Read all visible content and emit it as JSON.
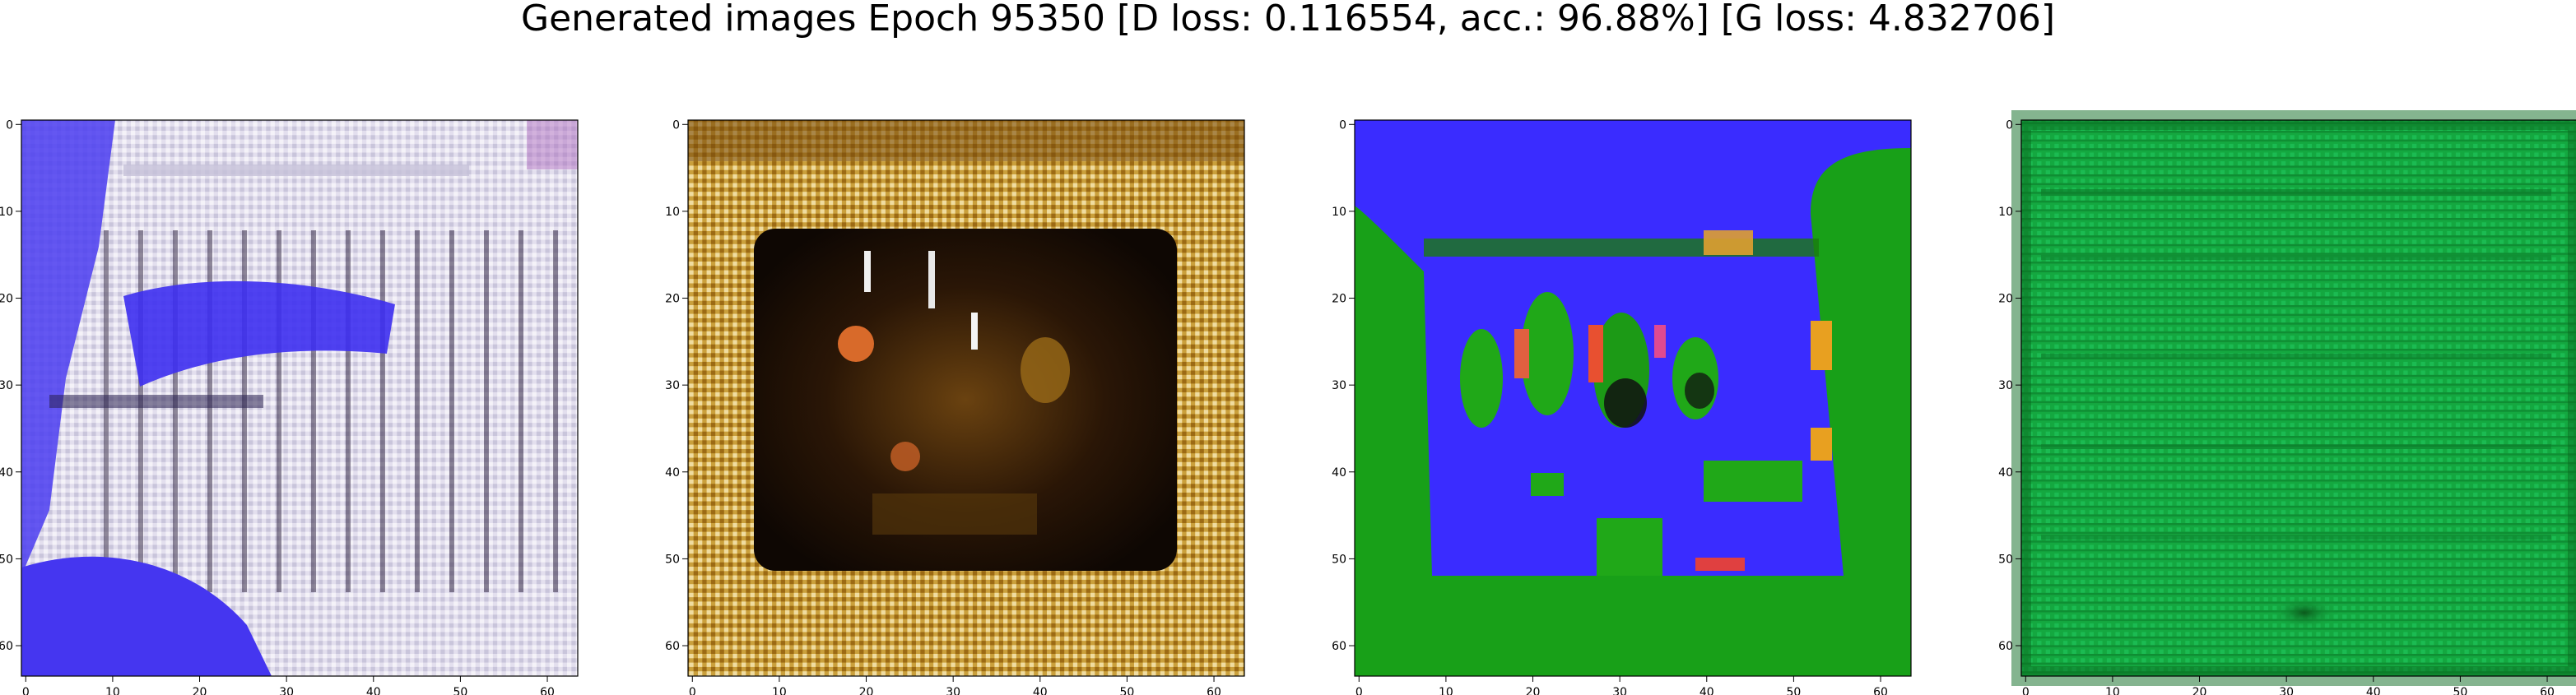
{
  "figure": {
    "title": "Generated images Epoch 95350 [D loss: 0.116554, acc.: 96.88%] [G loss: 4.832706]",
    "epoch": 95350,
    "d_loss": 0.116554,
    "acc_percent": 96.88,
    "g_loss": 4.832706
  },
  "panels": [
    {
      "id": "sample-1",
      "description_colors": [
        "#e6e2ef",
        "#4a3cf0",
        "#2a2a3a",
        "#b7b4cf"
      ],
      "x_ticks": [
        "0",
        "10",
        "20",
        "30",
        "40",
        "50",
        "60"
      ],
      "y_ticks": [
        "0",
        "10",
        "20",
        "30",
        "40",
        "50",
        "60"
      ],
      "xlim": [
        0,
        63
      ],
      "ylim": [
        63,
        0
      ]
    },
    {
      "id": "sample-2",
      "description_colors": [
        "#c8941c",
        "#1a0d05",
        "#7a5010",
        "#d86a2a"
      ],
      "x_ticks": [
        "0",
        "10",
        "20",
        "30",
        "40",
        "50",
        "60"
      ],
      "y_ticks": [
        "0",
        "10",
        "20",
        "30",
        "40",
        "50",
        "60"
      ],
      "xlim": [
        0,
        63
      ],
      "ylim": [
        63,
        0
      ]
    },
    {
      "id": "sample-3",
      "description_colors": [
        "#3a2cff",
        "#18a018",
        "#e06040",
        "#101010"
      ],
      "x_ticks": [
        "0",
        "10",
        "20",
        "30",
        "40",
        "50",
        "60"
      ],
      "y_ticks": [
        "0",
        "10",
        "20",
        "30",
        "40",
        "50",
        "60"
      ],
      "xlim": [
        0,
        63
      ],
      "ylim": [
        63,
        0
      ]
    },
    {
      "id": "sample-4",
      "description_colors": [
        "#13a83e",
        "#0b6e22",
        "#1dc45a"
      ],
      "x_ticks": [
        "0",
        "10",
        "20",
        "30",
        "40",
        "50",
        "60"
      ],
      "y_ticks": [
        "0",
        "10",
        "20",
        "30",
        "40",
        "50",
        "60"
      ],
      "xlim": [
        0,
        63
      ],
      "ylim": [
        63,
        0
      ]
    }
  ]
}
